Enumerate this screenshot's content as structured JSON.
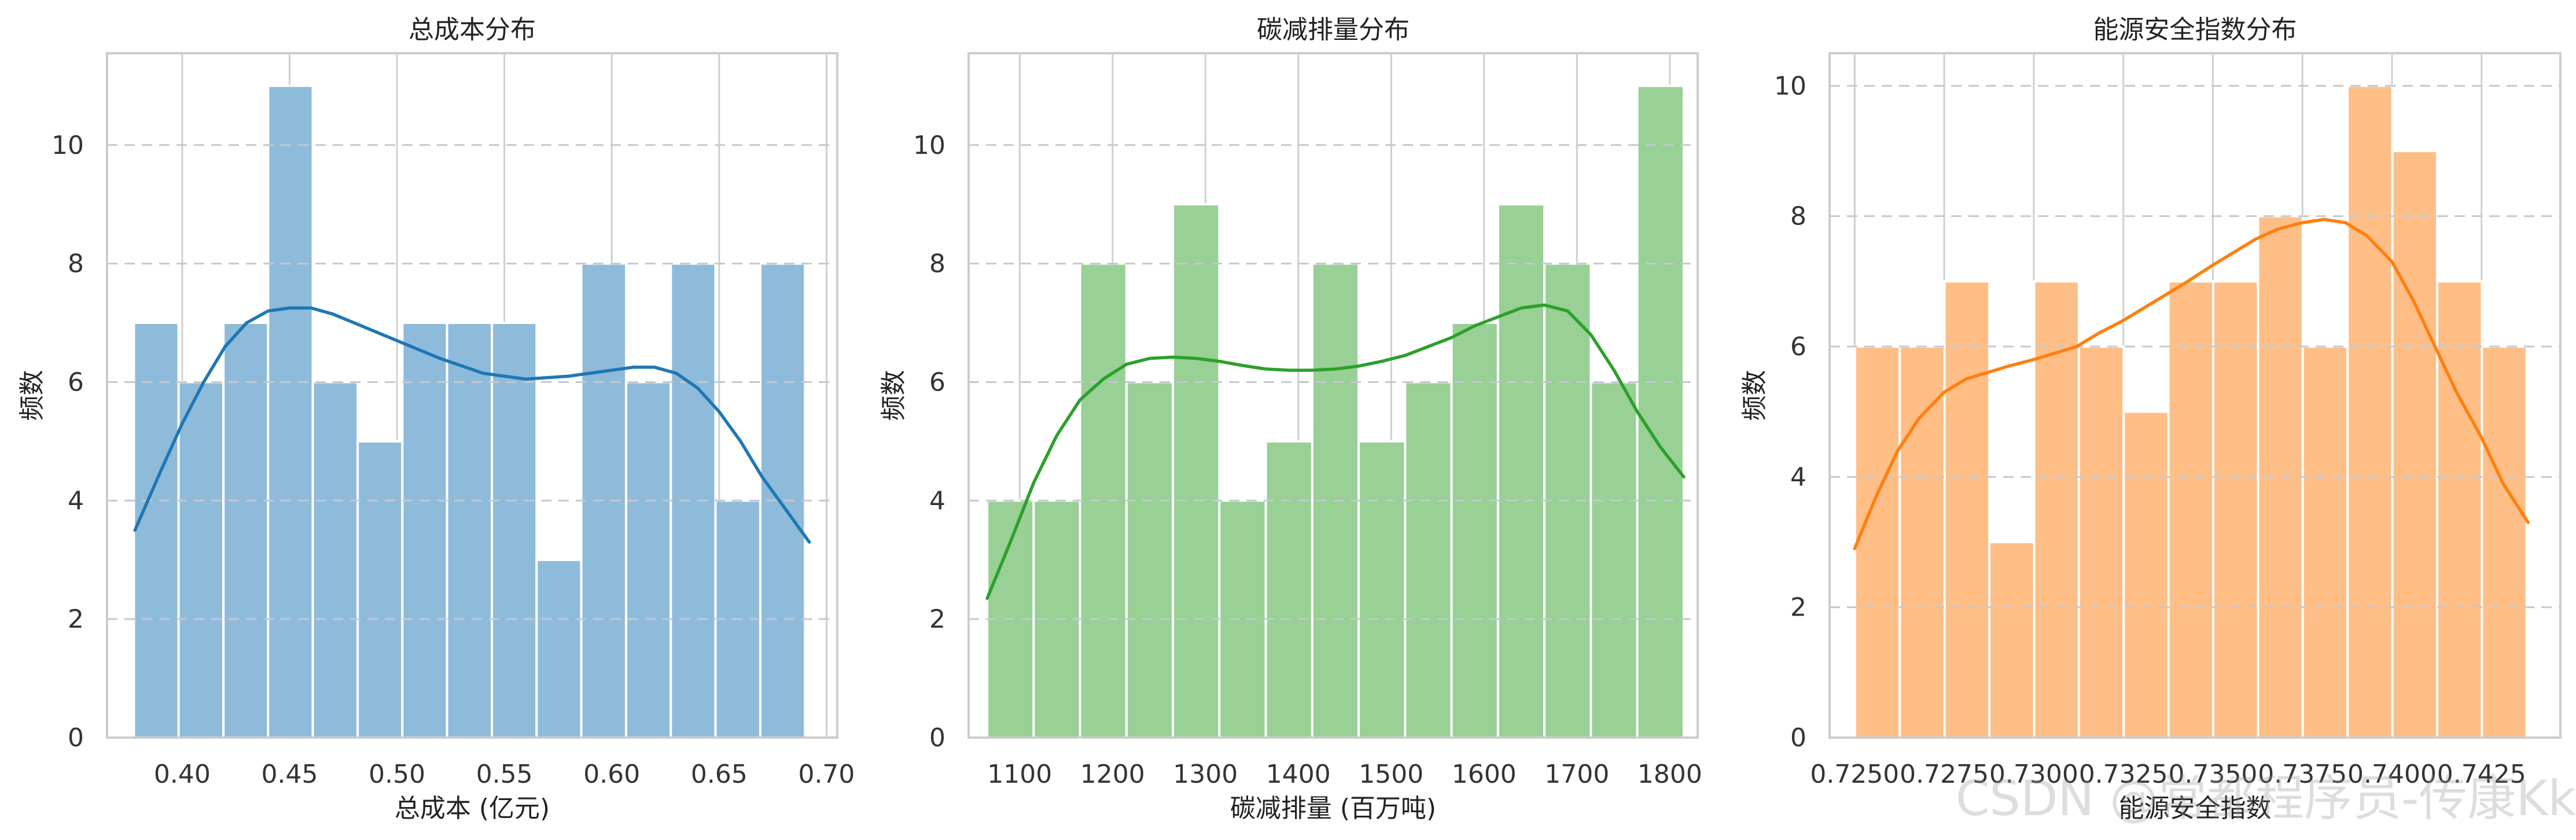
{
  "watermark": "CSDN @常都程序员-传康Kk",
  "chart_data": [
    {
      "type": "bar",
      "title": "总成本分布",
      "xlabel": "总成本 (亿元)",
      "ylabel": "频数",
      "xlim": [
        0.365,
        0.705
      ],
      "ylim": [
        0,
        11.55
      ],
      "xticks": [
        0.4,
        0.45,
        0.5,
        0.55,
        0.6,
        0.65,
        0.7
      ],
      "xtick_labels": [
        "0.40",
        "0.45",
        "0.50",
        "0.55",
        "0.60",
        "0.65",
        "0.70"
      ],
      "yticks": [
        0,
        2,
        4,
        6,
        8,
        10
      ],
      "bin_edges": [
        0.3775,
        0.3983,
        0.4192,
        0.44,
        0.4608,
        0.4817,
        0.5025,
        0.5233,
        0.5442,
        0.565,
        0.5858,
        0.6067,
        0.6275,
        0.6483,
        0.6692,
        0.69
      ],
      "counts": [
        7,
        6,
        7,
        11,
        6,
        5,
        7,
        7,
        7,
        3,
        8,
        6,
        8,
        4,
        8
      ],
      "kde": {
        "x": [
          0.378,
          0.39,
          0.4,
          0.41,
          0.42,
          0.43,
          0.44,
          0.45,
          0.46,
          0.47,
          0.48,
          0.49,
          0.5,
          0.52,
          0.54,
          0.56,
          0.58,
          0.6,
          0.61,
          0.62,
          0.63,
          0.64,
          0.65,
          0.66,
          0.67,
          0.68,
          0.692
        ],
        "y": [
          3.5,
          4.5,
          5.3,
          6.0,
          6.6,
          7.0,
          7.2,
          7.25,
          7.25,
          7.15,
          7.0,
          6.85,
          6.7,
          6.4,
          6.15,
          6.05,
          6.1,
          6.2,
          6.25,
          6.25,
          6.15,
          5.9,
          5.5,
          5.0,
          4.4,
          3.9,
          3.3
        ]
      },
      "colors": {
        "bar": "#8fbbdb",
        "line": "#1f77b4"
      },
      "grid": true
    },
    {
      "type": "bar",
      "title": "碳减排量分布",
      "xlabel": "碳减排量 (百万吨)",
      "ylabel": "频数",
      "xlim": [
        1045,
        1830
      ],
      "ylim": [
        0,
        11.55
      ],
      "xticks": [
        1100,
        1200,
        1300,
        1400,
        1500,
        1600,
        1700,
        1800
      ],
      "xtick_labels": [
        "1100",
        "1200",
        "1300",
        "1400",
        "1500",
        "1600",
        "1700",
        "1800"
      ],
      "yticks": [
        0,
        2,
        4,
        6,
        8,
        10
      ],
      "bin_edges": [
        1065,
        1115,
        1165,
        1215,
        1265,
        1315,
        1365,
        1415,
        1465,
        1515,
        1565,
        1615,
        1665,
        1715,
        1765,
        1815
      ],
      "counts": [
        4,
        4,
        8,
        6,
        9,
        4,
        5,
        8,
        5,
        6,
        7,
        9,
        8,
        6,
        11
      ],
      "kde": {
        "x": [
          1065,
          1090,
          1115,
          1140,
          1165,
          1190,
          1215,
          1240,
          1265,
          1290,
          1315,
          1340,
          1365,
          1390,
          1415,
          1440,
          1465,
          1490,
          1515,
          1540,
          1565,
          1590,
          1615,
          1640,
          1665,
          1690,
          1715,
          1740,
          1765,
          1790,
          1815
        ],
        "y": [
          2.35,
          3.3,
          4.3,
          5.1,
          5.7,
          6.05,
          6.3,
          6.4,
          6.42,
          6.4,
          6.35,
          6.28,
          6.22,
          6.2,
          6.2,
          6.22,
          6.27,
          6.35,
          6.45,
          6.6,
          6.75,
          6.95,
          7.1,
          7.25,
          7.3,
          7.2,
          6.8,
          6.2,
          5.5,
          4.9,
          4.4
        ]
      },
      "colors": {
        "bar": "#98d095",
        "line": "#2ca02c"
      },
      "grid": true
    },
    {
      "type": "bar",
      "title": "能源安全指数分布",
      "xlabel": "能源安全指数",
      "ylabel": "频数",
      "xlim": [
        0.7243,
        0.7447
      ],
      "ylim": [
        0,
        10.5
      ],
      "xticks": [
        0.725,
        0.7275,
        0.73,
        0.7325,
        0.735,
        0.7375,
        0.74,
        0.7425
      ],
      "xtick_labels": [
        "0.7250",
        "0.7275",
        "0.7300",
        "0.7325",
        "0.7350",
        "0.7375",
        "0.7400",
        "0.7425"
      ],
      "yticks": [
        0,
        2,
        4,
        6,
        8,
        10
      ],
      "bin_edges": [
        0.72501,
        0.72626,
        0.72751,
        0.72876,
        0.73001,
        0.73126,
        0.73251,
        0.73376,
        0.73501,
        0.73626,
        0.73751,
        0.73876,
        0.74001,
        0.74126,
        0.74251,
        0.74376
      ],
      "counts": [
        6,
        6,
        7,
        3,
        7,
        6,
        5,
        7,
        7,
        8,
        6,
        10,
        9,
        7,
        6
      ],
      "kde": {
        "x": [
          0.725,
          0.7256,
          0.7262,
          0.7268,
          0.7275,
          0.7281,
          0.7287,
          0.7293,
          0.73,
          0.7306,
          0.7312,
          0.7318,
          0.7325,
          0.7331,
          0.7337,
          0.7343,
          0.735,
          0.7356,
          0.7362,
          0.7368,
          0.7375,
          0.7381,
          0.7387,
          0.7393,
          0.74,
          0.7406,
          0.7412,
          0.7418,
          0.7425,
          0.7431,
          0.7438
        ],
        "y": [
          2.9,
          3.7,
          4.4,
          4.9,
          5.3,
          5.5,
          5.6,
          5.7,
          5.8,
          5.9,
          6.0,
          6.2,
          6.4,
          6.6,
          6.8,
          7.0,
          7.25,
          7.45,
          7.65,
          7.8,
          7.9,
          7.95,
          7.9,
          7.7,
          7.3,
          6.7,
          6.0,
          5.3,
          4.6,
          3.9,
          3.3
        ]
      },
      "colors": {
        "bar": "#ffbe86",
        "line": "#ff7f0e"
      },
      "grid": true
    }
  ]
}
